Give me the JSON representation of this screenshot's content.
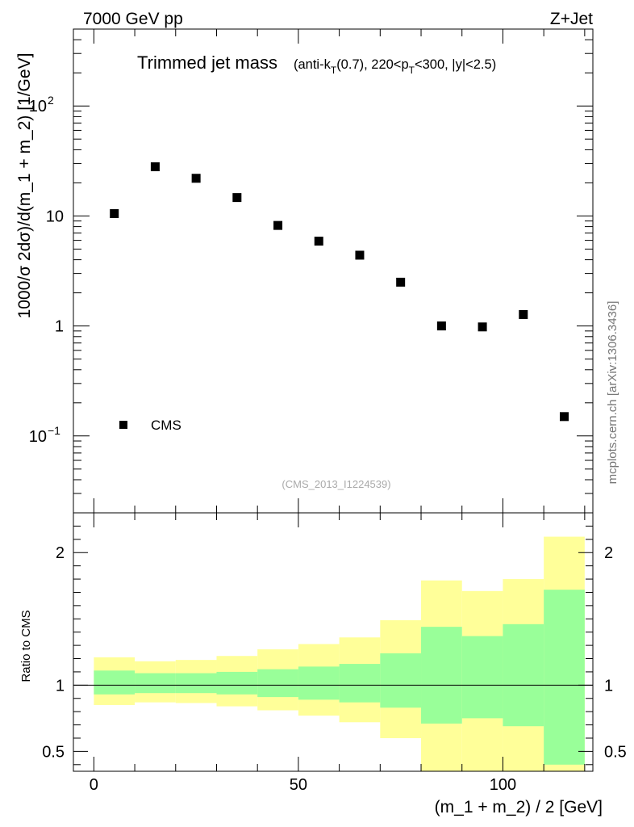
{
  "header": {
    "energy_label": "7000 GeV pp",
    "process_label": "Z+Jet"
  },
  "watermark": "mcplots.cern.ch [arXiv:1306.3436]",
  "analysis_id": "(CMS_2013_I1224539)",
  "chart_data": [
    {
      "type": "scatter",
      "title": "Trimmed jet mass",
      "title_cuts": {
        "t1": "(anti-k",
        "t1_sub": "T",
        "t2": "(0.7), 220<p",
        "t2_sub": "T",
        "t3": "<300, |y|<2.5)"
      },
      "ylabel": "1000/σ 2dσ)/d(m_1 + m_2) [1/GeV]",
      "yscale": "log",
      "ylim": [
        0.02,
        500
      ],
      "xlim": [
        -5,
        122
      ],
      "y_tick_labels": [
        {
          "value": 100,
          "base": "10",
          "exp": "2"
        },
        {
          "value": 10,
          "base": "10",
          "exp": ""
        },
        {
          "value": 1,
          "base": "1",
          "exp": ""
        },
        {
          "value": 0.1,
          "base": "10",
          "exp": "−1"
        }
      ],
      "series": [
        {
          "name": "CMS",
          "marker": "square",
          "color": "#000000",
          "x": [
            5,
            15,
            25,
            35,
            45,
            55,
            65,
            75,
            85,
            95,
            105,
            115
          ],
          "y": [
            10.5,
            28,
            22,
            14.7,
            8.2,
            5.9,
            4.4,
            2.5,
            1.0,
            0.98,
            1.27,
            0.15
          ]
        }
      ],
      "legend_position": "bottom-left"
    },
    {
      "type": "area",
      "ylabel": "Ratio to CMS",
      "xlabel": "(m_1 + m_2) / 2 [GeV]",
      "xlim": [
        -5,
        122
      ],
      "ylim": [
        0.35,
        2.3
      ],
      "x_tick_labels": [
        "0",
        "50",
        "100"
      ],
      "x_ticks": [
        0,
        50,
        100
      ],
      "y_tick_labels": [
        "0.5",
        "1",
        "2"
      ],
      "y_ticks": [
        0.5,
        1,
        2
      ],
      "reference_line": 1,
      "bin_edges": [
        0,
        10,
        20,
        30,
        40,
        50,
        60,
        70,
        80,
        90,
        100,
        110,
        120
      ],
      "bands": [
        {
          "color": "#ffff99",
          "low": [
            0.85,
            0.87,
            0.865,
            0.84,
            0.81,
            0.77,
            0.72,
            0.6,
            0.0,
            0.0,
            0.0,
            0.0
          ],
          "high": [
            1.21,
            1.18,
            1.19,
            1.22,
            1.27,
            1.31,
            1.36,
            1.49,
            1.79,
            1.71,
            1.8,
            2.12
          ]
        },
        {
          "color": "#99ff99",
          "low": [
            0.93,
            0.94,
            0.94,
            0.93,
            0.91,
            0.89,
            0.87,
            0.83,
            0.71,
            0.75,
            0.69,
            0.4
          ],
          "high": [
            1.11,
            1.09,
            1.09,
            1.1,
            1.12,
            1.14,
            1.16,
            1.24,
            1.44,
            1.37,
            1.46,
            1.72
          ]
        }
      ]
    }
  ]
}
